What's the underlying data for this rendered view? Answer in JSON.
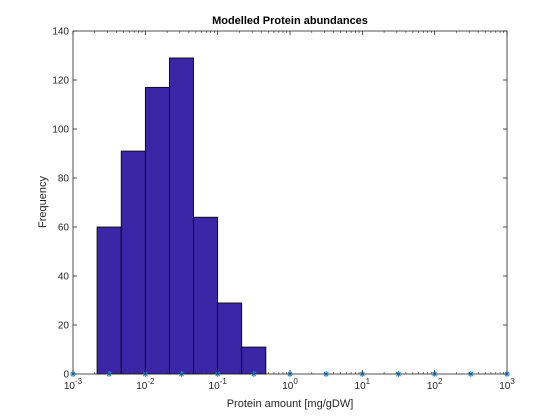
{
  "chart_data": {
    "type": "bar",
    "title": "Modelled Protein abundances",
    "xlabel": "Protein amount [mg/gDW]",
    "ylabel": "Frequency",
    "x_scale": "log",
    "xlim": [
      0.001,
      1000
    ],
    "ylim": [
      0,
      140
    ],
    "y_ticks": [
      0,
      20,
      40,
      60,
      80,
      100,
      120,
      140
    ],
    "x_ticks": [
      {
        "value": 0.001,
        "base": "10",
        "exp": "-3"
      },
      {
        "value": 0.01,
        "base": "10",
        "exp": "-2"
      },
      {
        "value": 0.1,
        "base": "10",
        "exp": "-1"
      },
      {
        "value": 1,
        "base": "10",
        "exp": "0"
      },
      {
        "value": 10,
        "base": "10",
        "exp": "1"
      },
      {
        "value": 100,
        "base": "10",
        "exp": "2"
      },
      {
        "value": 1000,
        "base": "10",
        "exp": "3"
      }
    ],
    "bins": [
      {
        "x_start": 0.00215,
        "x_end": 0.00464,
        "count": 60
      },
      {
        "x_start": 0.00464,
        "x_end": 0.01,
        "count": 91
      },
      {
        "x_start": 0.01,
        "x_end": 0.0215,
        "count": 117
      },
      {
        "x_start": 0.0215,
        "x_end": 0.0464,
        "count": 129
      },
      {
        "x_start": 0.0464,
        "x_end": 0.1,
        "count": 64
      },
      {
        "x_start": 0.1,
        "x_end": 0.215,
        "count": 29
      },
      {
        "x_start": 0.215,
        "x_end": 0.464,
        "count": 11
      }
    ],
    "bin_markers_x": [
      0.001,
      0.00316,
      0.01,
      0.0316,
      0.1,
      0.316,
      1,
      3.16,
      10,
      31.6,
      100,
      316,
      1000
    ],
    "colors": {
      "bar_fill": "#3b26a8",
      "bar_edge": "#000000",
      "marker": "#1f8fd6"
    },
    "grid": false,
    "legend": "none"
  }
}
